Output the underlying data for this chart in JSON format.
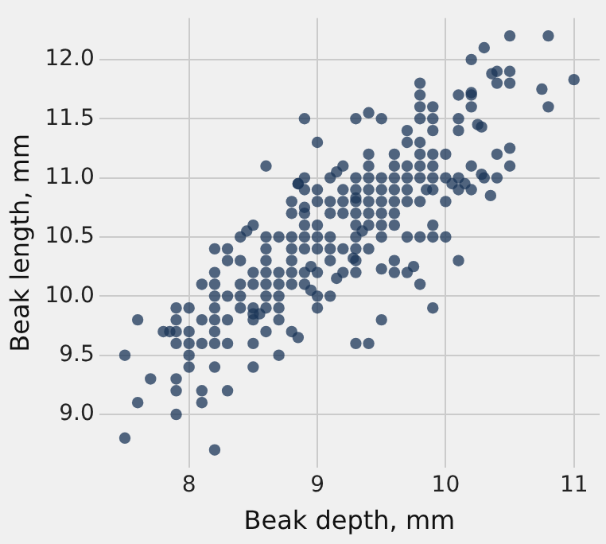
{
  "chart_data": {
    "type": "scatter",
    "xlabel": "Beak depth, mm",
    "ylabel": "Beak length, mm",
    "xlim": [
      7.3,
      11.2
    ],
    "ylim": [
      8.55,
      12.35
    ],
    "xticks": [
      8,
      9,
      10,
      11
    ],
    "yticks": [
      {
        "value": 9,
        "label": "9.0"
      },
      9.5,
      {
        "value": 10,
        "label": "10.0"
      },
      10.5,
      {
        "value": 11,
        "label": "11.0"
      },
      11.5,
      {
        "value": 12,
        "label": "12.0"
      }
    ],
    "grid": true,
    "legend": false,
    "marker": "circle",
    "series": [
      {
        "color": "#1b3558",
        "x": [
          7.5,
          7.5,
          7.6,
          7.6,
          7.7,
          7.8,
          7.85,
          8.5,
          8.45,
          8.4,
          8.6,
          8.7,
          8.2,
          8.3,
          8.3,
          8.4,
          8.6,
          8.6,
          8.2,
          8.5,
          8.6,
          8.7,
          8.1,
          8.2,
          8.4,
          8.5,
          8.6,
          8.7,
          8.2,
          8.3,
          8.4,
          8.6,
          8.7,
          7.9,
          8.0,
          8.2,
          8.4,
          8.5,
          8.6,
          8.7,
          8.5,
          8.55,
          7.9,
          8.1,
          8.2,
          8.3,
          8.5,
          8.7,
          7.9,
          8.0,
          8.2,
          8.6,
          7.9,
          8.0,
          8.1,
          8.2,
          8.3,
          8.5,
          8.0,
          8.7,
          8.0,
          8.2,
          8.5,
          7.9,
          7.9,
          8.1,
          8.3,
          8.1,
          7.9,
          8.2,
          8.6,
          8.85,
          8.9,
          9.0,
          9.3,
          9.4,
          9.5,
          9.8,
          9.8,
          9.7,
          9.7,
          9.8,
          9.2,
          9.4,
          9.6,
          9.8,
          9.4,
          9.6,
          9.7,
          9.8,
          8.85,
          8.9,
          8.9,
          9.1,
          9.15,
          9.3,
          9.4,
          9.5,
          9.6,
          9.7,
          9.8,
          9.0,
          9.2,
          9.3,
          9.4,
          9.5,
          9.6,
          9.7,
          9.85,
          8.8,
          8.9,
          8.9,
          9.0,
          9.1,
          9.2,
          9.3,
          9.3,
          9.4,
          9.5,
          9.6,
          9.7,
          8.8,
          9.1,
          9.2,
          9.3,
          9.4,
          9.5,
          9.6,
          8.9,
          9.0,
          9.3,
          9.4,
          9.5,
          9.6,
          9.35,
          8.8,
          8.9,
          9.0,
          9.1,
          9.3,
          9.5,
          9.7,
          9.8,
          8.8,
          8.9,
          9.0,
          9.1,
          9.2,
          9.3,
          9.4,
          8.8,
          8.95,
          9.1,
          9.3,
          9.28,
          9.6,
          8.8,
          8.9,
          9.0,
          9.2,
          9.3,
          9.5,
          9.6,
          9.7,
          9.75,
          9.15,
          8.8,
          8.9,
          9.8,
          8.95,
          9.0,
          9.1,
          9.0,
          9.5,
          8.8,
          8.85,
          9.3,
          9.4,
          9.9,
          9.8,
          9.8,
          9.8,
          9.9,
          9.9,
          9.9,
          9.9,
          9.9,
          9.9,
          9.9,
          10.0,
          10.0,
          10.0,
          10.05,
          10.1,
          10.1,
          10.15,
          10.2,
          10.2,
          10.1,
          10.1,
          10.1,
          10.2,
          10.2,
          10.2,
          10.2,
          10.25,
          10.28,
          10.3,
          10.36,
          10.4,
          10.4,
          10.5,
          10.5,
          10.5,
          10.8,
          10.75,
          10.8,
          11.0,
          10.4,
          10.5,
          10.5,
          10.28,
          10.3,
          10.4,
          10.35,
          9.9,
          10.0,
          9.9,
          10.1
        ],
        "values": [
          8.8,
          9.5,
          9.8,
          9.1,
          9.3,
          9.7,
          9.7,
          10.6,
          10.55,
          10.5,
          10.5,
          10.5,
          10.4,
          10.4,
          10.3,
          10.3,
          10.4,
          10.3,
          10.2,
          10.2,
          10.2,
          10.2,
          10.1,
          10.1,
          10.1,
          10.1,
          10.1,
          10.1,
          10.0,
          10.0,
          10.0,
          10.0,
          10.0,
          9.9,
          9.9,
          9.9,
          9.9,
          9.9,
          9.9,
          9.9,
          9.85,
          9.85,
          9.8,
          9.8,
          9.8,
          9.8,
          9.8,
          9.8,
          9.7,
          9.7,
          9.7,
          9.7,
          9.6,
          9.6,
          9.6,
          9.6,
          9.6,
          9.6,
          9.5,
          9.5,
          9.4,
          9.4,
          9.4,
          9.3,
          9.2,
          9.2,
          9.2,
          9.1,
          9.0,
          8.7,
          11.1,
          10.95,
          11.5,
          11.3,
          11.5,
          11.55,
          11.5,
          11.6,
          11.5,
          11.4,
          11.3,
          11.3,
          11.1,
          11.2,
          11.2,
          11.2,
          11.1,
          11.1,
          11.1,
          11.1,
          10.95,
          11.0,
          10.9,
          11.0,
          11.05,
          11.0,
          11.0,
          11.0,
          11.0,
          11.0,
          11.0,
          10.9,
          10.9,
          10.9,
          10.9,
          10.9,
          10.9,
          10.9,
          10.9,
          10.8,
          10.75,
          10.7,
          10.8,
          10.8,
          10.8,
          10.8,
          10.83,
          10.8,
          10.8,
          10.8,
          10.8,
          10.7,
          10.7,
          10.7,
          10.7,
          10.7,
          10.7,
          10.7,
          10.6,
          10.6,
          10.6,
          10.6,
          10.6,
          10.6,
          10.55,
          10.5,
          10.5,
          10.5,
          10.5,
          10.5,
          10.5,
          10.5,
          10.5,
          10.4,
          10.4,
          10.4,
          10.4,
          10.4,
          10.4,
          10.4,
          10.3,
          10.25,
          10.3,
          10.3,
          10.32,
          10.3,
          10.2,
          10.2,
          10.2,
          10.2,
          10.2,
          10.23,
          10.2,
          10.2,
          10.25,
          10.15,
          10.1,
          10.1,
          10.1,
          10.05,
          10.0,
          10.0,
          9.9,
          9.8,
          9.7,
          9.65,
          9.6,
          9.6,
          9.9,
          11.8,
          11.7,
          10.8,
          11.6,
          11.5,
          11.4,
          11.2,
          11.1,
          11.0,
          10.9,
          11.2,
          11.0,
          10.8,
          10.95,
          10.9,
          11.0,
          10.95,
          10.9,
          11.1,
          11.4,
          11.5,
          11.7,
          11.72,
          11.7,
          11.6,
          12.0,
          11.45,
          11.43,
          12.1,
          11.88,
          11.9,
          11.8,
          11.9,
          11.8,
          12.2,
          12.2,
          11.75,
          11.6,
          11.83,
          11.2,
          11.25,
          11.1,
          11.03,
          11.0,
          11.0,
          10.85,
          10.5,
          10.5,
          10.6,
          10.3
        ]
      }
    ]
  }
}
